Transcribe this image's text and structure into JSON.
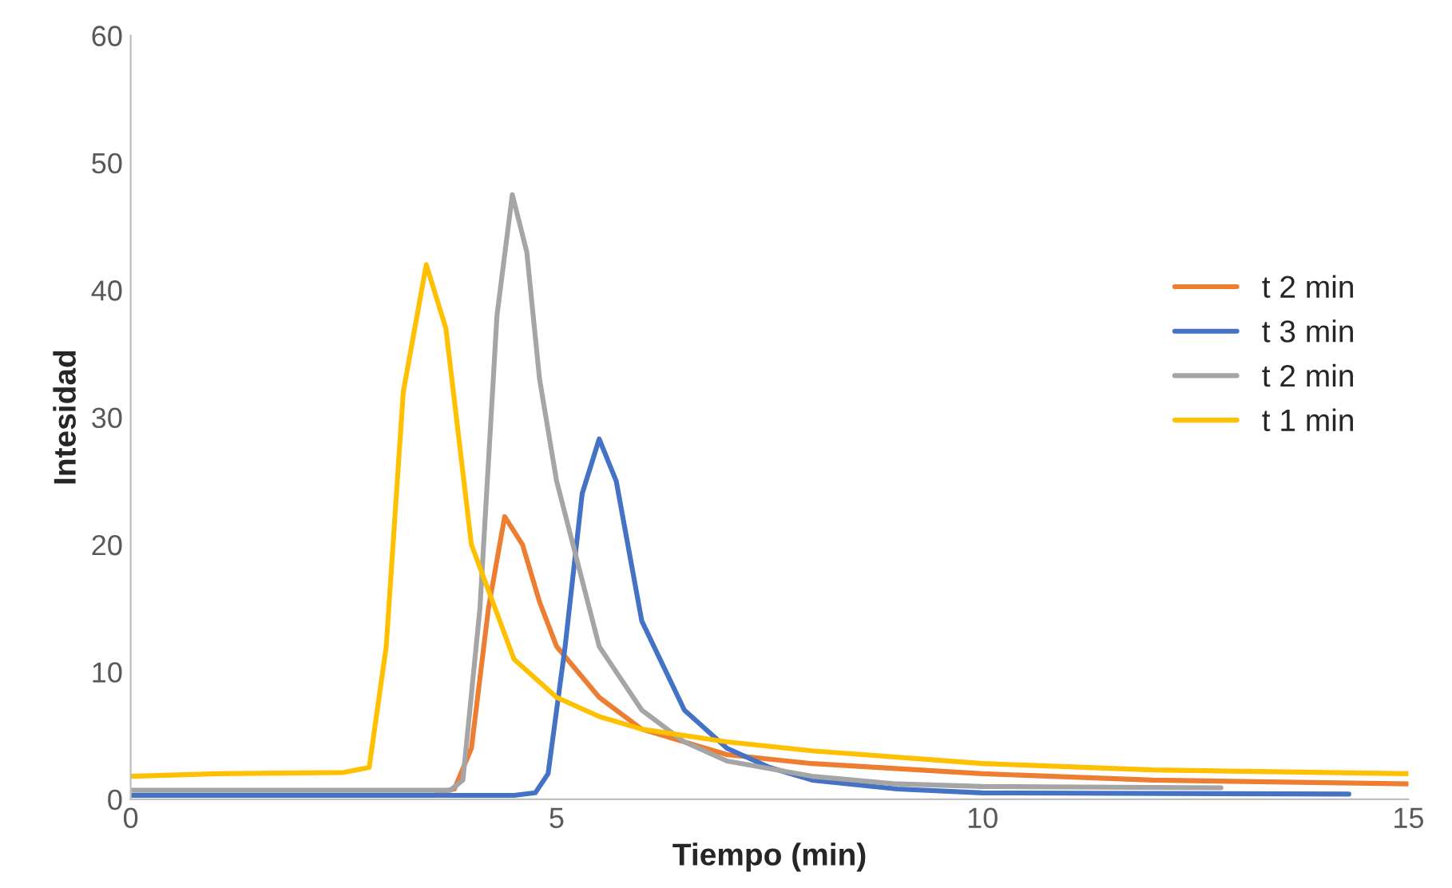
{
  "chart_data": {
    "type": "line",
    "xlabel": "Tiempo (min)",
    "ylabel": "Intesidad",
    "xlim": [
      0,
      15
    ],
    "xticks": [
      0,
      5,
      10,
      15
    ],
    "ylim": [
      0,
      60
    ],
    "yticks": [
      0,
      10,
      20,
      30,
      40,
      50,
      60
    ],
    "grid": false,
    "legend": "right",
    "marker": "none",
    "line_style": "solid",
    "series": [
      {
        "name": "t 2 min",
        "color": "#ed7d31",
        "x": [
          3.6,
          3.8,
          4.0,
          4.2,
          4.39,
          4.6,
          4.8,
          5.0,
          5.5,
          6.0,
          7.0,
          8.0,
          10.0,
          12.0,
          15.0
        ],
        "values": [
          0.5,
          0.8,
          4,
          15,
          22.2,
          20,
          15.5,
          12,
          8,
          5.5,
          3.5,
          2.8,
          2,
          1.5,
          1.2
        ]
      },
      {
        "name": "t 3 min",
        "color": "#4472c4",
        "x": [
          0,
          2,
          4.5,
          4.75,
          4.9,
          5.1,
          5.3,
          5.5,
          5.7,
          6.0,
          6.5,
          7.0,
          7.5,
          8.0,
          9.0,
          10.0,
          14.3
        ],
        "values": [
          0.3,
          0.3,
          0.3,
          0.5,
          2,
          12,
          24,
          28.3,
          25,
          14,
          7,
          4,
          2.5,
          1.5,
          0.8,
          0.5,
          0.4
        ]
      },
      {
        "name": "t 2 min",
        "color": "#a5a5a5",
        "x": [
          0,
          2,
          3.75,
          3.9,
          4.1,
          4.3,
          4.48,
          4.65,
          4.8,
          5.0,
          5.5,
          6.0,
          6.5,
          7.0,
          8.0,
          9.0,
          10.0,
          12.8
        ],
        "values": [
          0.7,
          0.7,
          0.7,
          1.5,
          15,
          38,
          47.5,
          43,
          33,
          25,
          12,
          7,
          4.5,
          3,
          1.8,
          1.2,
          1,
          0.9
        ]
      },
      {
        "name": "t 1 min",
        "color": "#ffc000",
        "x": [
          0,
          1,
          2.5,
          2.8,
          3.0,
          3.2,
          3.47,
          3.7,
          4.0,
          4.5,
          5.0,
          5.5,
          6.0,
          7.0,
          8.0,
          10.0,
          12.0,
          15.0
        ],
        "values": [
          1.8,
          2,
          2.1,
          2.5,
          12,
          32,
          42,
          37,
          20,
          11,
          8,
          6.5,
          5.5,
          4.5,
          3.8,
          2.8,
          2.3,
          2.0
        ]
      }
    ]
  }
}
